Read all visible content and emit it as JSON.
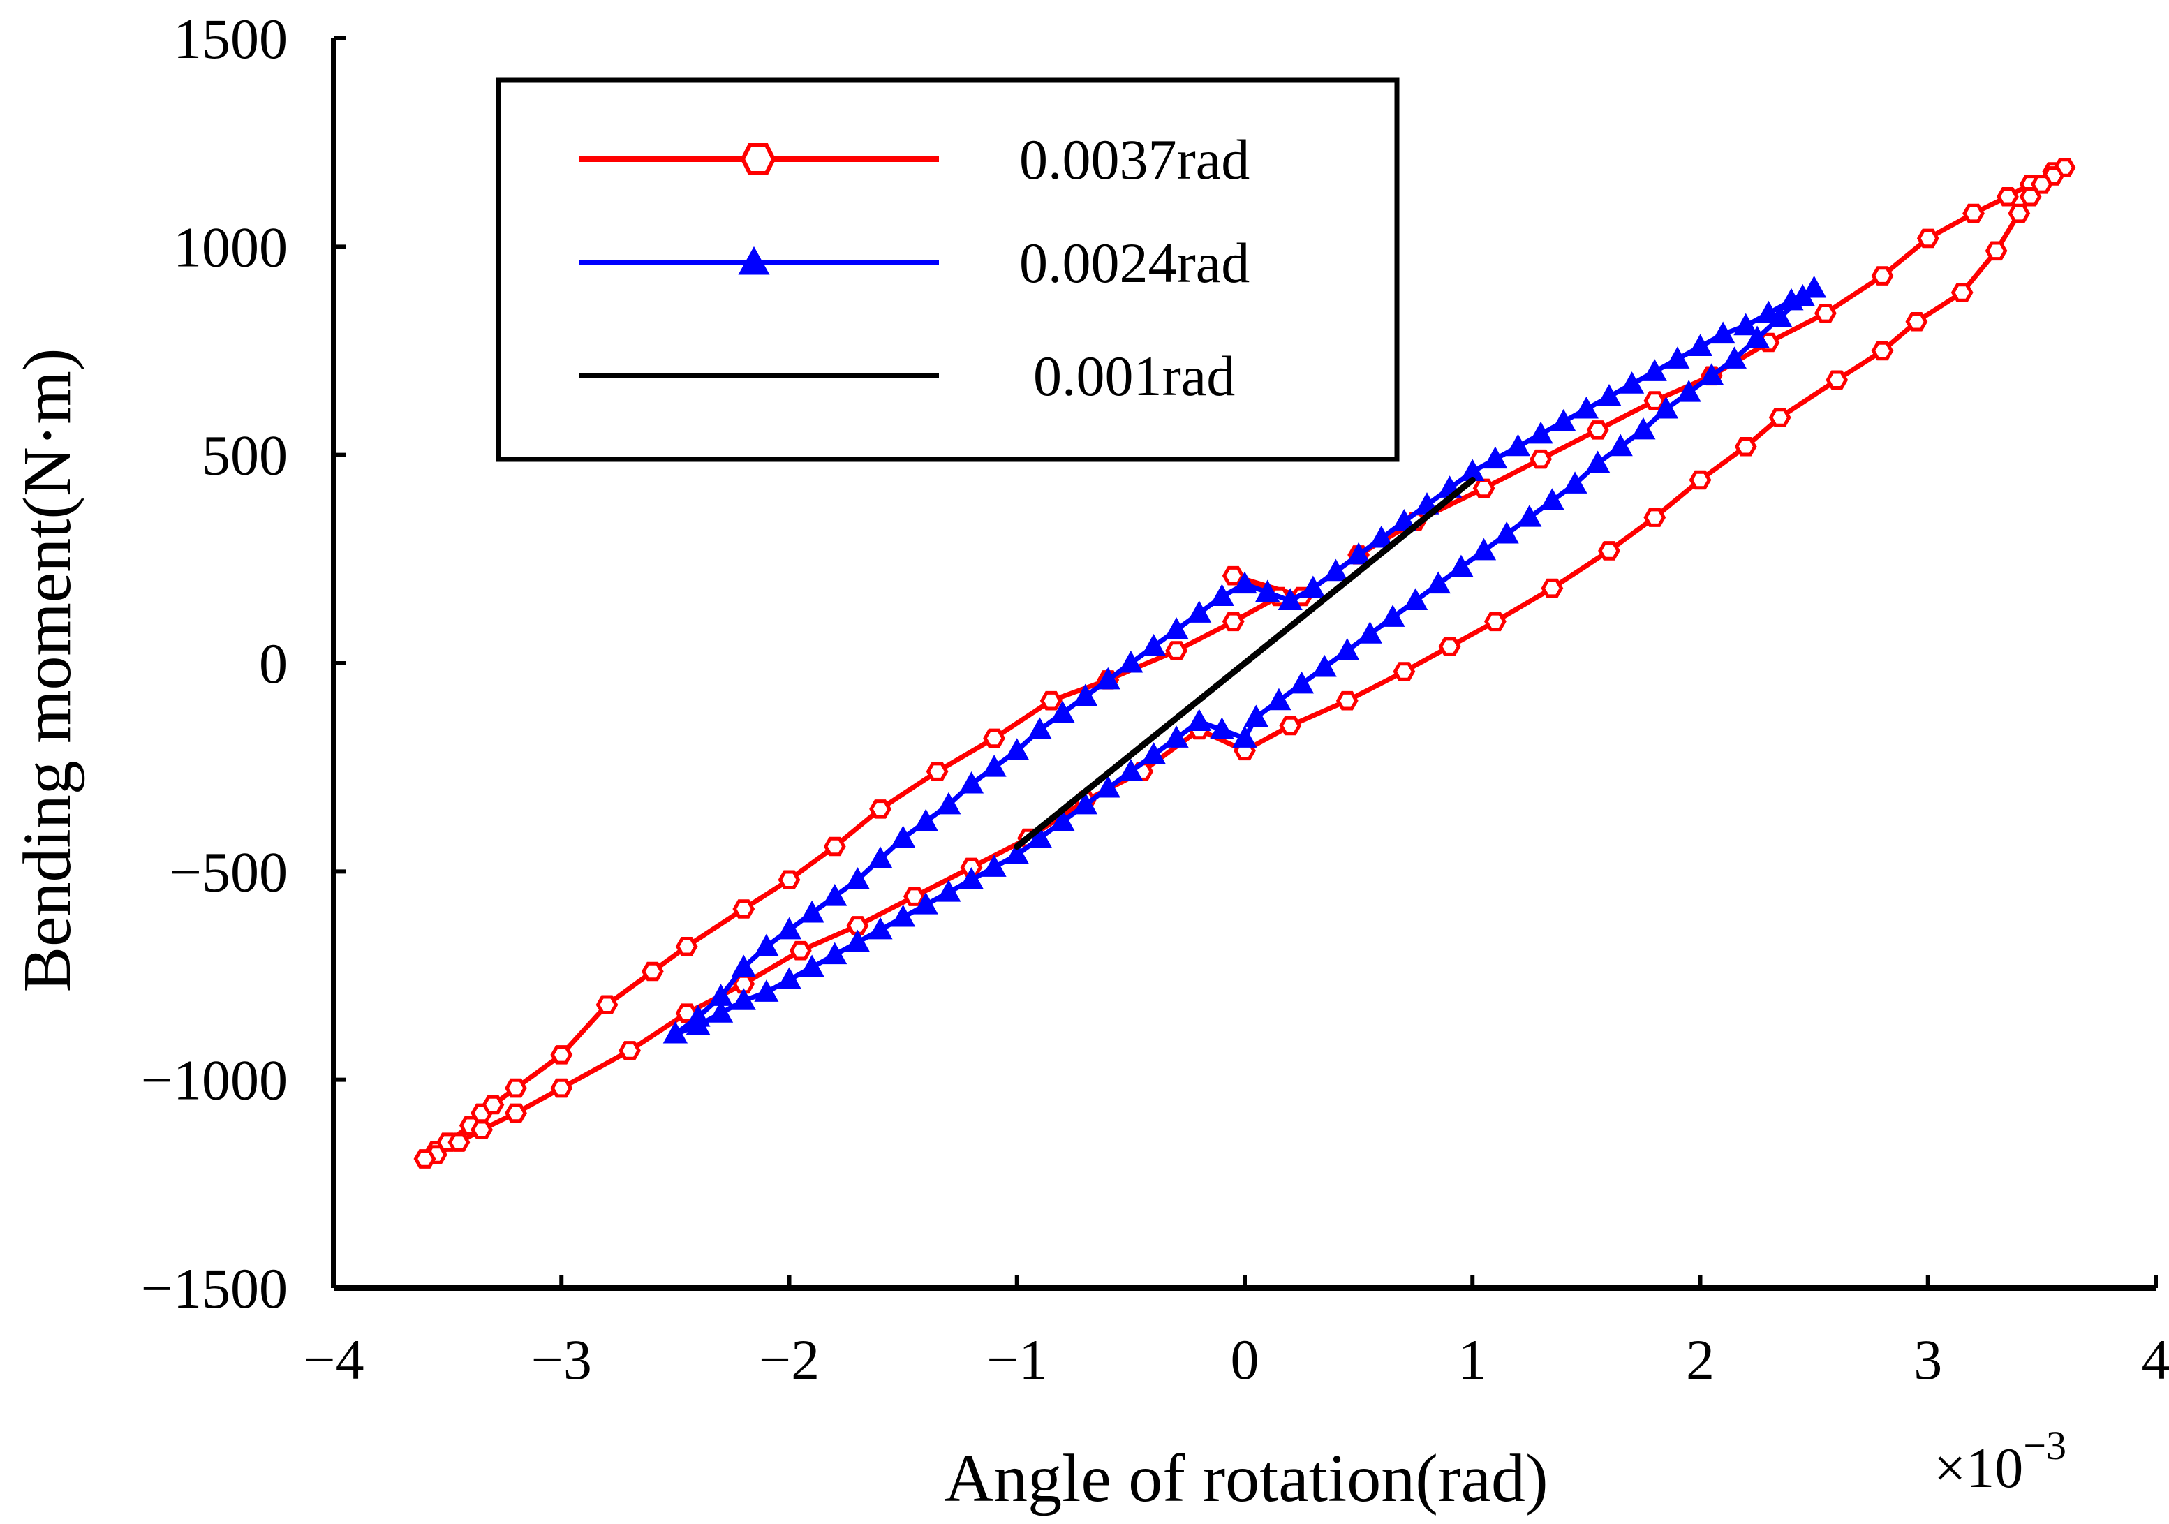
{
  "chart_data": {
    "type": "line",
    "title": "",
    "xlabel": "Angle of rotation(rad)",
    "ylabel": "Bending moment(N·m)",
    "x_multiplier_label": "×10",
    "x_multiplier_exponent": "−3",
    "xlim": [
      -4,
      4
    ],
    "ylim": [
      -1500,
      1500
    ],
    "x_ticks": [
      -4,
      -3,
      -2,
      -1,
      0,
      1,
      2,
      3,
      4
    ],
    "x_tick_labels": [
      "−4",
      "−3",
      "−2",
      "−1",
      "0",
      "1",
      "2",
      "3",
      "4"
    ],
    "y_ticks": [
      -1500,
      -1000,
      -500,
      0,
      500,
      1000,
      1500
    ],
    "y_tick_labels": [
      "−1500",
      "−1000",
      "−500",
      "0",
      "500",
      "1000",
      "1500"
    ],
    "grid": false,
    "legend_position": "top-left",
    "series": [
      {
        "name": "0.0037rad",
        "color": "#ff0000",
        "marker": "hexagon",
        "points": [
          [
            -3.6,
            -1190
          ],
          [
            -3.55,
            -1170
          ],
          [
            -3.5,
            -1150
          ],
          [
            -3.4,
            -1110
          ],
          [
            -3.35,
            -1080
          ],
          [
            -3.3,
            -1060
          ],
          [
            -3.2,
            -1020
          ],
          [
            -3.0,
            -940
          ],
          [
            -2.8,
            -820
          ],
          [
            -2.6,
            -740
          ],
          [
            -2.45,
            -680
          ],
          [
            -2.2,
            -590
          ],
          [
            -2.0,
            -520
          ],
          [
            -1.8,
            -440
          ],
          [
            -1.6,
            -350
          ],
          [
            -1.35,
            -260
          ],
          [
            -1.1,
            -180
          ],
          [
            -0.85,
            -90
          ],
          [
            -0.6,
            -40
          ],
          [
            -0.3,
            30
          ],
          [
            -0.05,
            100
          ],
          [
            0.15,
            160
          ],
          [
            -0.05,
            210
          ],
          [
            0.25,
            160
          ],
          [
            0.5,
            260
          ],
          [
            0.75,
            340
          ],
          [
            1.05,
            420
          ],
          [
            1.3,
            490
          ],
          [
            1.55,
            560
          ],
          [
            1.8,
            630
          ],
          [
            2.05,
            690
          ],
          [
            2.3,
            770
          ],
          [
            2.55,
            840
          ],
          [
            2.8,
            930
          ],
          [
            3.0,
            1020
          ],
          [
            3.2,
            1080
          ],
          [
            3.35,
            1120
          ],
          [
            3.45,
            1150
          ],
          [
            3.55,
            1180
          ],
          [
            3.6,
            1190
          ],
          [
            3.55,
            1170
          ],
          [
            3.5,
            1150
          ],
          [
            3.45,
            1120
          ],
          [
            3.4,
            1080
          ],
          [
            3.3,
            990
          ],
          [
            3.15,
            890
          ],
          [
            2.95,
            820
          ],
          [
            2.8,
            750
          ],
          [
            2.6,
            680
          ],
          [
            2.35,
            590
          ],
          [
            2.2,
            520
          ],
          [
            2.0,
            440
          ],
          [
            1.8,
            350
          ],
          [
            1.6,
            270
          ],
          [
            1.35,
            180
          ],
          [
            1.1,
            100
          ],
          [
            0.9,
            40
          ],
          [
            0.7,
            -20
          ],
          [
            0.45,
            -90
          ],
          [
            0.2,
            -150
          ],
          [
            0.0,
            -210
          ],
          [
            -0.2,
            -160
          ],
          [
            -0.45,
            -260
          ],
          [
            -0.7,
            -330
          ],
          [
            -0.95,
            -420
          ],
          [
            -1.2,
            -490
          ],
          [
            -1.45,
            -560
          ],
          [
            -1.7,
            -630
          ],
          [
            -1.95,
            -690
          ],
          [
            -2.2,
            -770
          ],
          [
            -2.45,
            -840
          ],
          [
            -2.7,
            -930
          ],
          [
            -3.0,
            -1020
          ],
          [
            -3.2,
            -1080
          ],
          [
            -3.35,
            -1120
          ],
          [
            -3.45,
            -1150
          ],
          [
            -3.55,
            -1180
          ],
          [
            -3.6,
            -1190
          ]
        ]
      },
      {
        "name": "0.0024rad",
        "color": "#0000ff",
        "marker": "triangle",
        "points": [
          [
            -2.5,
            -890
          ],
          [
            -2.4,
            -850
          ],
          [
            -2.3,
            -800
          ],
          [
            -2.2,
            -730
          ],
          [
            -2.1,
            -680
          ],
          [
            -2.0,
            -640
          ],
          [
            -1.9,
            -600
          ],
          [
            -1.8,
            -560
          ],
          [
            -1.7,
            -520
          ],
          [
            -1.6,
            -470
          ],
          [
            -1.5,
            -420
          ],
          [
            -1.4,
            -380
          ],
          [
            -1.3,
            -340
          ],
          [
            -1.2,
            -290
          ],
          [
            -1.1,
            -250
          ],
          [
            -1.0,
            -210
          ],
          [
            -0.9,
            -160
          ],
          [
            -0.8,
            -120
          ],
          [
            -0.7,
            -80
          ],
          [
            -0.6,
            -40
          ],
          [
            -0.5,
            0
          ],
          [
            -0.4,
            40
          ],
          [
            -0.3,
            80
          ],
          [
            -0.2,
            120
          ],
          [
            -0.1,
            160
          ],
          [
            0.0,
            190
          ],
          [
            0.1,
            170
          ],
          [
            0.2,
            150
          ],
          [
            0.3,
            180
          ],
          [
            0.4,
            220
          ],
          [
            0.5,
            260
          ],
          [
            0.6,
            300
          ],
          [
            0.7,
            340
          ],
          [
            0.8,
            380
          ],
          [
            0.9,
            420
          ],
          [
            1.0,
            460
          ],
          [
            1.1,
            490
          ],
          [
            1.2,
            520
          ],
          [
            1.3,
            550
          ],
          [
            1.4,
            580
          ],
          [
            1.5,
            610
          ],
          [
            1.6,
            640
          ],
          [
            1.7,
            670
          ],
          [
            1.8,
            700
          ],
          [
            1.9,
            730
          ],
          [
            2.0,
            760
          ],
          [
            2.1,
            790
          ],
          [
            2.2,
            810
          ],
          [
            2.3,
            840
          ],
          [
            2.4,
            870
          ],
          [
            2.5,
            900
          ],
          [
            2.45,
            880
          ],
          [
            2.35,
            830
          ],
          [
            2.25,
            780
          ],
          [
            2.15,
            730
          ],
          [
            2.05,
            690
          ],
          [
            1.95,
            650
          ],
          [
            1.85,
            610
          ],
          [
            1.75,
            560
          ],
          [
            1.65,
            520
          ],
          [
            1.55,
            480
          ],
          [
            1.45,
            430
          ],
          [
            1.35,
            390
          ],
          [
            1.25,
            350
          ],
          [
            1.15,
            310
          ],
          [
            1.05,
            270
          ],
          [
            0.95,
            230
          ],
          [
            0.85,
            190
          ],
          [
            0.75,
            150
          ],
          [
            0.65,
            110
          ],
          [
            0.55,
            70
          ],
          [
            0.45,
            30
          ],
          [
            0.35,
            -10
          ],
          [
            0.25,
            -50
          ],
          [
            0.15,
            -90
          ],
          [
            0.05,
            -130
          ],
          [
            0.0,
            -180
          ],
          [
            -0.1,
            -160
          ],
          [
            -0.2,
            -140
          ],
          [
            -0.3,
            -180
          ],
          [
            -0.4,
            -220
          ],
          [
            -0.5,
            -260
          ],
          [
            -0.6,
            -300
          ],
          [
            -0.7,
            -340
          ],
          [
            -0.8,
            -380
          ],
          [
            -0.9,
            -420
          ],
          [
            -1.0,
            -460
          ],
          [
            -1.1,
            -490
          ],
          [
            -1.2,
            -520
          ],
          [
            -1.3,
            -550
          ],
          [
            -1.4,
            -580
          ],
          [
            -1.5,
            -610
          ],
          [
            -1.6,
            -640
          ],
          [
            -1.7,
            -670
          ],
          [
            -1.8,
            -700
          ],
          [
            -1.9,
            -730
          ],
          [
            -2.0,
            -760
          ],
          [
            -2.1,
            -790
          ],
          [
            -2.2,
            -810
          ],
          [
            -2.3,
            -840
          ],
          [
            -2.4,
            -870
          ],
          [
            -2.5,
            -890
          ]
        ]
      },
      {
        "name": "0.001rad",
        "color": "#000000",
        "marker": "none",
        "points": [
          [
            -1.0,
            -440
          ],
          [
            0.0,
            0
          ],
          [
            1.0,
            440
          ]
        ]
      }
    ]
  }
}
